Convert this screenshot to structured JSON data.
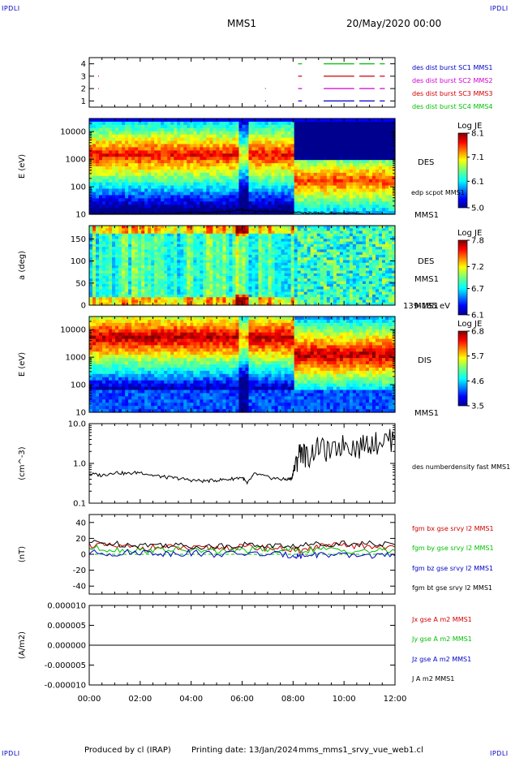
{
  "header": {
    "corner_tl": "IPDLI",
    "corner_tr": "IPDLI",
    "corner_bl": "IPDLI",
    "corner_br": "IPDLI",
    "spacecraft": "MMS1",
    "date": "20/May/2020 00:00"
  },
  "footer": {
    "produced_by": "Produced by cl (IRAP)",
    "printing_date": "Printing date: 13/Jan/2024",
    "filename": "mms_mms1_srvy_vue_web1.cl"
  },
  "time_axis": {
    "ticks": [
      "00:00",
      "02:00",
      "04:00",
      "06:00",
      "08:00",
      "10:00",
      "12:00"
    ],
    "range_hours": [
      0,
      12
    ]
  },
  "colors": {
    "legend_blue": "#0000c8",
    "legend_magenta": "#d000d0",
    "legend_red": "#d00000",
    "legend_green": "#00c000",
    "legend_black": "#000000"
  },
  "chart_data": [
    {
      "id": "burst-availability",
      "type": "scatter",
      "yticks": [
        "1",
        "2",
        "3",
        "4"
      ],
      "ylim": [
        0.5,
        4.5
      ],
      "legend": [
        {
          "label": "des dist burst SC1 MMS1",
          "color": "#0000c8",
          "level": 1
        },
        {
          "label": "des dist burst SC2 MMS2",
          "color": "#d000d0",
          "level": 2
        },
        {
          "label": "des dist burst SC3 MMS3",
          "color": "#d00000",
          "level": 3
        },
        {
          "label": "des dist burst SC4 MMS4",
          "color": "#00c000",
          "level": 4
        }
      ],
      "segments": [
        {
          "level": 4,
          "color": "#00c000",
          "intervals": [
            [
              8.2,
              8.35
            ],
            [
              9.2,
              10.4
            ],
            [
              10.6,
              11.2
            ],
            [
              11.4,
              11.6
            ]
          ]
        },
        {
          "level": 3,
          "color": "#d00000",
          "intervals": [
            [
              0.35,
              0.38
            ],
            [
              8.2,
              8.35
            ],
            [
              9.2,
              10.4
            ],
            [
              10.6,
              11.2
            ],
            [
              11.4,
              11.6
            ]
          ]
        },
        {
          "level": 2,
          "color": "#d000d0",
          "intervals": [
            [
              0.35,
              0.38
            ],
            [
              6.9,
              6.92
            ],
            [
              8.2,
              8.35
            ],
            [
              9.2,
              10.4
            ],
            [
              10.6,
              11.2
            ],
            [
              11.4,
              11.6
            ]
          ]
        },
        {
          "level": 1,
          "color": "#0000c8",
          "intervals": [
            [
              6.9,
              6.92
            ],
            [
              8.2,
              8.35
            ],
            [
              9.2,
              10.4
            ],
            [
              10.6,
              11.2
            ],
            [
              11.4,
              11.6
            ]
          ]
        }
      ]
    },
    {
      "id": "des-energy-spectrogram",
      "type": "heatmap",
      "ylabel": "E (eV)",
      "yscale": "log",
      "ylim": [
        10,
        30000
      ],
      "yticks": [
        "10",
        "100",
        "1000",
        "10000"
      ],
      "right_label": "DES",
      "instrument_label": "MMS1",
      "overlay_label": "edp scpot MMS1",
      "colorbar": {
        "title": "Log JE",
        "ticks": [
          "8.1",
          "7.1",
          "6.1",
          "5.0"
        ],
        "range": [
          5.0,
          8.1
        ]
      },
      "overlay": {
        "name": "edp scpot MMS1",
        "time": [
          0,
          1,
          3,
          3.3,
          4,
          5,
          5.5,
          6,
          6.1,
          6.3,
          7,
          8,
          8.5,
          9,
          10,
          11,
          12
        ],
        "values": [
          10,
          10,
          10,
          11,
          12,
          12,
          13,
          15,
          14,
          13,
          13,
          12,
          11,
          11,
          11,
          10,
          10
        ]
      }
    },
    {
      "id": "des-pitch-angle",
      "type": "heatmap",
      "ylabel": "a (deg)",
      "ylim": [
        0,
        180
      ],
      "yticks": [
        "0",
        "50",
        "100",
        "150"
      ],
      "right_label": "DES",
      "instrument_label": "MMS1",
      "energy_band": "139-185 eV",
      "colorbar": {
        "title": "Log JE",
        "ticks": [
          "7.8",
          "7.2",
          "6.7",
          "6.1"
        ],
        "range": [
          6.1,
          7.8
        ]
      }
    },
    {
      "id": "dis-energy-spectrogram",
      "type": "heatmap",
      "ylabel": "E (eV)",
      "yscale": "log",
      "ylim": [
        10,
        30000
      ],
      "yticks": [
        "10",
        "100",
        "1000",
        "10000"
      ],
      "right_label": "DIS",
      "instrument_label": "MMS1",
      "colorbar": {
        "title": "Log JE",
        "ticks": [
          "6.8",
          "5.7",
          "4.6",
          "3.5"
        ],
        "range": [
          3.5,
          6.8
        ]
      }
    },
    {
      "id": "density",
      "type": "line",
      "ylabel": "(cm^-3)",
      "yscale": "log",
      "ylim": [
        0.1,
        10
      ],
      "yticks": [
        "0.1",
        "1.0",
        "10.0"
      ],
      "series": [
        {
          "name": "des numberdensity fast MMS1",
          "color": "#000000",
          "time": [
            0,
            0.5,
            1,
            1.5,
            2,
            2.5,
            3,
            3.5,
            4,
            4.5,
            5,
            5.5,
            6,
            6.2,
            6.5,
            7,
            7.5,
            7.8,
            7.95,
            8.1,
            8.3,
            8.6,
            9,
            9.5,
            10,
            10.5,
            11,
            11.5,
            12
          ],
          "values": [
            0.55,
            0.5,
            0.6,
            0.55,
            0.6,
            0.5,
            0.45,
            0.42,
            0.38,
            0.36,
            0.38,
            0.4,
            0.45,
            0.3,
            0.55,
            0.45,
            0.4,
            0.4,
            0.42,
            0.9,
            2.5,
            1.5,
            3.0,
            2.0,
            3.5,
            2.8,
            3.8,
            4.0,
            5.0
          ]
        }
      ]
    },
    {
      "id": "magnetic-field",
      "type": "line",
      "ylabel": "(nT)",
      "ylim": [
        -50,
        50
      ],
      "yticks": [
        "-40",
        "-20",
        "0",
        "20",
        "40"
      ],
      "series": [
        {
          "name": "fgm bx gse srvy l2 MMS1",
          "color": "#d00000",
          "time": [
            0,
            1,
            2,
            3,
            4,
            5,
            6,
            7,
            8,
            8.3,
            9,
            10,
            11,
            12
          ],
          "values": [
            12,
            10,
            8,
            9,
            7,
            8,
            9,
            8,
            6,
            5,
            10,
            11,
            10,
            9
          ]
        },
        {
          "name": "fgm by gse srvy l2 MMS1",
          "color": "#00c000",
          "time": [
            0,
            1,
            2,
            3,
            4,
            5,
            6,
            7,
            8,
            9,
            10,
            11,
            12
          ],
          "values": [
            8,
            6,
            5,
            6,
            5,
            4,
            5,
            6,
            5,
            6,
            5,
            4,
            5
          ]
        },
        {
          "name": "fgm bz gse srvy l2 MMS1",
          "color": "#0000c8",
          "time": [
            0,
            1,
            2,
            3,
            4,
            5,
            6,
            7,
            8,
            8.3,
            9,
            10,
            11,
            12
          ],
          "values": [
            2,
            1,
            3,
            1,
            2,
            0,
            1,
            0,
            -1,
            -2,
            0,
            -2,
            -1,
            -2
          ]
        },
        {
          "name": "fgm bt gse srvy l2 MMS1",
          "color": "#000000",
          "time": [
            0,
            1,
            2,
            3,
            4,
            5,
            6,
            7,
            8,
            9,
            10,
            11,
            12
          ],
          "values": [
            15,
            13,
            12,
            12,
            10,
            10,
            12,
            11,
            10,
            13,
            14,
            13,
            12
          ]
        }
      ]
    },
    {
      "id": "current-density",
      "type": "line",
      "ylabel": "(A/m2)",
      "ylim": [
        -1e-05,
        1e-05
      ],
      "yticks": [
        "-0.000010",
        "-0.000005",
        "0.000000",
        "0.000005",
        "0.000010"
      ],
      "series": [
        {
          "name": "Jx gse A m2 MMS1",
          "color": "#d00000",
          "time": [
            0,
            12
          ],
          "values": [
            0,
            0
          ]
        },
        {
          "name": "Jy gse A m2 MMS1",
          "color": "#00c000",
          "time": [
            0,
            12
          ],
          "values": [
            0,
            0
          ]
        },
        {
          "name": "Jz gse A m2 MMS1",
          "color": "#0000c8",
          "time": [
            0,
            12
          ],
          "values": [
            0,
            0
          ]
        },
        {
          "name": "J A m2 MMS1",
          "color": "#000000",
          "time": [
            0,
            12
          ],
          "values": [
            0,
            0
          ]
        }
      ]
    }
  ]
}
